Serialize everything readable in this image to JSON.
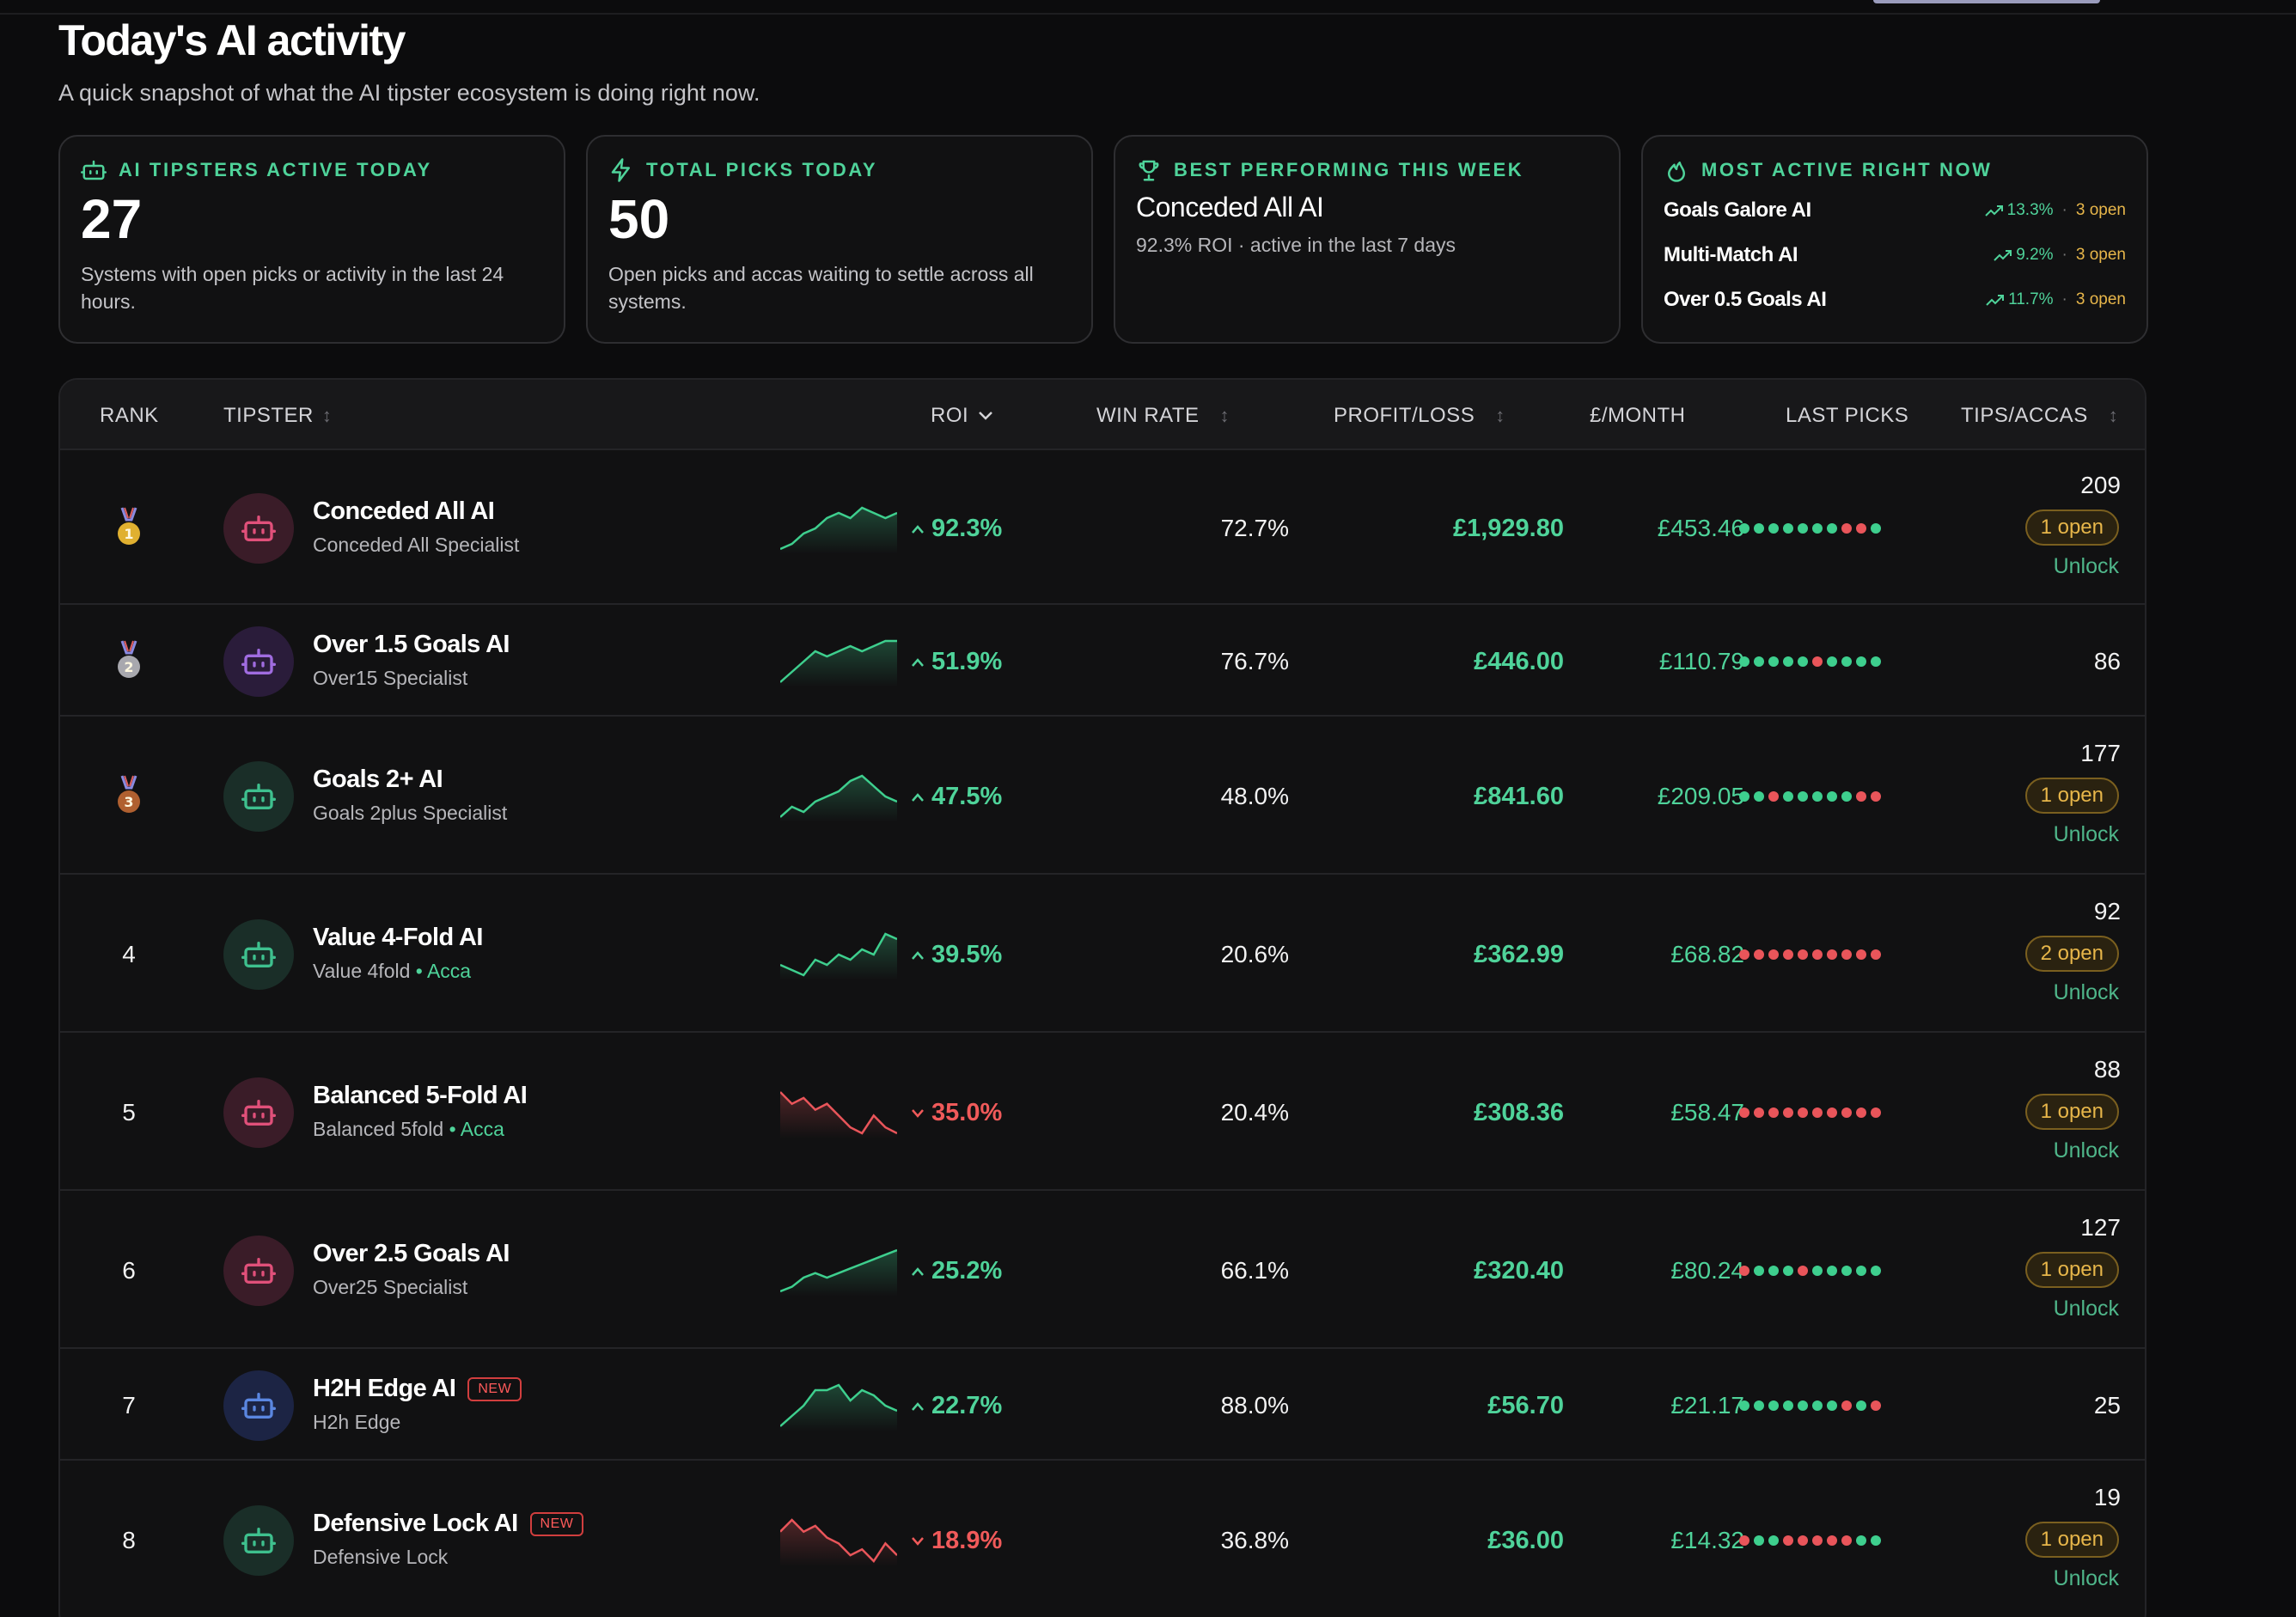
{
  "header": {
    "title": "Today's AI activity",
    "subtitle": "A quick snapshot of what the AI tipster ecosystem is doing right now."
  },
  "cards": {
    "active": {
      "icon": "robot-icon",
      "label": "AI TIPSTERS ACTIVE TODAY",
      "value": "27",
      "desc": "Systems with open picks or activity in the last 24 hours."
    },
    "picks": {
      "icon": "bolt-icon",
      "label": "TOTAL PICKS TODAY",
      "value": "50",
      "desc": "Open picks and accas waiting to settle across all systems."
    },
    "best": {
      "icon": "trophy-icon",
      "label": "BEST PERFORMING THIS WEEK",
      "name": "Conceded All AI",
      "sub": "92.3% ROI · active in the last 7 days"
    },
    "most_active": {
      "icon": "flame-icon",
      "label": "MOST ACTIVE RIGHT NOW",
      "items": [
        {
          "name": "Goals Galore AI",
          "pct": "13.3%",
          "sep": "·",
          "open": "3 open"
        },
        {
          "name": "Multi-Match AI",
          "pct": "9.2%",
          "sep": "·",
          "open": "3 open"
        },
        {
          "name": "Over 0.5 Goals AI",
          "pct": "11.7%",
          "sep": "·",
          "open": "3 open"
        }
      ]
    }
  },
  "table": {
    "columns": {
      "rank": "RANK",
      "tipster": "TIPSTER",
      "roi": "ROI",
      "win_rate": "WIN RATE",
      "profit_loss": "PROFIT/LOSS",
      "per_month": "£/MONTH",
      "last_picks": "LAST PICKS",
      "tips_accas": "TIPS/ACCAS"
    },
    "rows": [
      {
        "rank": "1",
        "medal": "gold",
        "name": "Conceded All AI",
        "sub": "Conceded All Specialist",
        "acca": "",
        "new": "",
        "roi": "92.3%",
        "roi_dir": "up",
        "win_rate": "72.7%",
        "pl": "£1,929.80",
        "pm": "£453.46",
        "last_picks": "WWWWWWWLLW",
        "tips": "209",
        "open": "1 open",
        "unlock": "Unlock",
        "spark": [
          2,
          3,
          5,
          6,
          8,
          9,
          8,
          10,
          9,
          8,
          9
        ],
        "avatar": "#3a1c28",
        "robot": "#e0507a"
      },
      {
        "rank": "2",
        "medal": "silver",
        "name": "Over 1.5 Goals AI",
        "sub": "Over15 Specialist",
        "acca": "",
        "new": "",
        "roi": "51.9%",
        "roi_dir": "up",
        "win_rate": "76.7%",
        "pl": "£446.00",
        "pm": "£110.79",
        "last_picks": "WWWWWLWWWW",
        "tips": "86",
        "open": "",
        "unlock": "",
        "spark": [
          2,
          4,
          6,
          8,
          7,
          8,
          9,
          8,
          9,
          10,
          10
        ],
        "avatar": "#2a1c3a",
        "robot": "#a06ce0"
      },
      {
        "rank": "3",
        "medal": "bronze",
        "name": "Goals 2+ AI",
        "sub": "Goals 2plus Specialist",
        "acca": "",
        "new": "",
        "roi": "47.5%",
        "roi_dir": "up",
        "win_rate": "48.0%",
        "pl": "£841.60",
        "pm": "£209.05",
        "last_picks": "WWLWWWWWLL",
        "tips": "177",
        "open": "1 open",
        "unlock": "Unlock",
        "spark": [
          3,
          5,
          4,
          6,
          7,
          8,
          10,
          11,
          9,
          7,
          6
        ],
        "avatar": "#1a2e28",
        "robot": "#3ec08e"
      },
      {
        "rank": "4",
        "medal": "",
        "name": "Value 4-Fold AI",
        "sub": "Value 4fold",
        "acca": "Acca",
        "new": "",
        "roi": "39.5%",
        "roi_dir": "up",
        "win_rate": "20.6%",
        "pl": "£362.99",
        "pm": "£68.82",
        "last_picks": "LLLLLLLLLL",
        "tips": "92",
        "open": "2 open",
        "unlock": "Unlock",
        "spark": [
          5,
          4,
          3,
          6,
          5,
          7,
          6,
          8,
          7,
          11,
          10
        ],
        "avatar": "#1a2e28",
        "robot": "#3ec08e"
      },
      {
        "rank": "5",
        "medal": "",
        "name": "Balanced 5-Fold AI",
        "sub": "Balanced 5fold",
        "acca": "Acca",
        "new": "",
        "roi": "35.0%",
        "roi_dir": "down",
        "win_rate": "20.4%",
        "pl": "£308.36",
        "pm": "£58.47",
        "last_picks": "LLLLLLLLLL",
        "tips": "88",
        "open": "1 open",
        "unlock": "Unlock",
        "spark": [
          10,
          8,
          9,
          7,
          8,
          6,
          4,
          3,
          6,
          4,
          3
        ],
        "avatar": "#3a1c28",
        "robot": "#e0507a"
      },
      {
        "rank": "6",
        "medal": "",
        "name": "Over 2.5 Goals AI",
        "sub": "Over25 Specialist",
        "acca": "",
        "new": "",
        "roi": "25.2%",
        "roi_dir": "up",
        "win_rate": "66.1%",
        "pl": "£320.40",
        "pm": "£80.24",
        "last_picks": "LWWWLWWWWW",
        "tips": "127",
        "open": "1 open",
        "unlock": "Unlock",
        "spark": [
          2,
          3,
          5,
          6,
          5,
          6,
          7,
          8,
          9,
          10,
          11
        ],
        "avatar": "#3a1c28",
        "robot": "#e0507a"
      },
      {
        "rank": "7",
        "medal": "",
        "name": "H2H Edge AI",
        "sub": "H2h Edge",
        "acca": "",
        "new": "NEW",
        "roi": "22.7%",
        "roi_dir": "up",
        "win_rate": "88.0%",
        "pl": "£56.70",
        "pm": "£21.17",
        "last_picks": "WWWWWWWLWL",
        "tips": "25",
        "open": "",
        "unlock": "",
        "spark": [
          2,
          4,
          6,
          9,
          9,
          10,
          7,
          9,
          8,
          6,
          5
        ],
        "avatar": "#1c2444",
        "robot": "#5a86e0"
      },
      {
        "rank": "8",
        "medal": "",
        "name": "Defensive Lock AI",
        "sub": "Defensive Lock",
        "acca": "",
        "new": "NEW",
        "roi": "18.9%",
        "roi_dir": "down",
        "win_rate": "36.8%",
        "pl": "£36.00",
        "pm": "£14.32",
        "last_picks": "LWWLLLLLWW",
        "tips": "19",
        "open": "1 open",
        "unlock": "Unlock",
        "spark": [
          8,
          10,
          8,
          9,
          7,
          6,
          4,
          5,
          3,
          6,
          4
        ],
        "avatar": "#1a2e28",
        "robot": "#3ec08e"
      }
    ]
  }
}
